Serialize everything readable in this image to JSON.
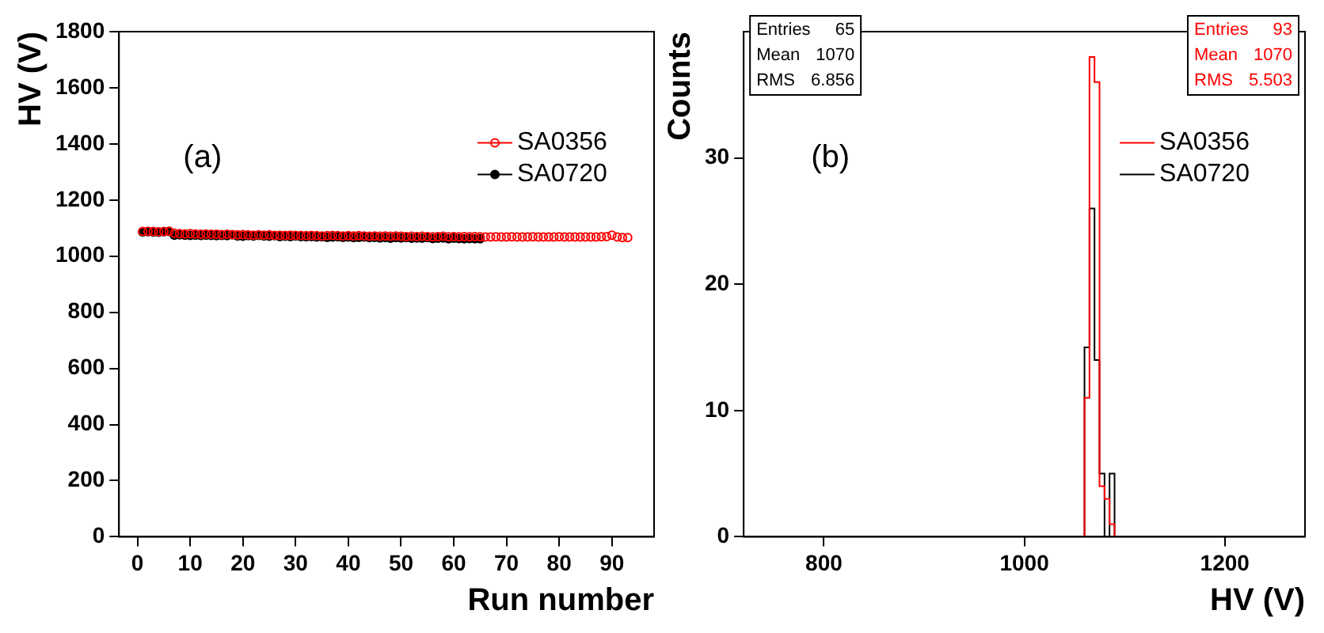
{
  "chart_data": [
    {
      "type": "scatter",
      "xlabel": "Run number",
      "ylabel": "HV (V)",
      "annotations": [
        "(a)"
      ],
      "xlim": [
        -3.5,
        98
      ],
      "xticks": [
        0,
        10,
        20,
        30,
        40,
        50,
        60,
        70,
        80,
        90
      ],
      "ylim": [
        0,
        1800
      ],
      "yticks": [
        0,
        200,
        400,
        600,
        800,
        1000,
        1200,
        1400,
        1600,
        1800
      ],
      "grid": false,
      "legend": "top right",
      "marker": "circle",
      "series": [
        {
          "name": "SA0356",
          "color": "#ff0000",
          "x": [
            1,
            2,
            3,
            4,
            5,
            6,
            7,
            8,
            9,
            10,
            11,
            12,
            13,
            14,
            15,
            16,
            17,
            18,
            19,
            20,
            21,
            22,
            23,
            24,
            25,
            26,
            27,
            28,
            29,
            30,
            31,
            32,
            33,
            34,
            35,
            36,
            37,
            38,
            39,
            40,
            41,
            42,
            43,
            44,
            45,
            46,
            47,
            48,
            49,
            50,
            51,
            52,
            53,
            54,
            55,
            56,
            57,
            58,
            59,
            60,
            61,
            62,
            63,
            64,
            65,
            66,
            67,
            68,
            69,
            70,
            71,
            72,
            73,
            74,
            75,
            76,
            77,
            78,
            79,
            80,
            81,
            82,
            83,
            84,
            85,
            86,
            87,
            88,
            89,
            90,
            91,
            92,
            93
          ],
          "values": [
            1088,
            1089,
            1088,
            1087,
            1088,
            1089,
            1082,
            1080,
            1079,
            1080,
            1079,
            1078,
            1079,
            1078,
            1078,
            1077,
            1078,
            1077,
            1076,
            1077,
            1076,
            1075,
            1076,
            1075,
            1076,
            1074,
            1075,
            1074,
            1075,
            1074,
            1074,
            1073,
            1074,
            1073,
            1072,
            1073,
            1074,
            1073,
            1072,
            1073,
            1072,
            1073,
            1072,
            1071,
            1072,
            1071,
            1072,
            1071,
            1072,
            1071,
            1070,
            1071,
            1070,
            1071,
            1070,
            1069,
            1070,
            1071,
            1069,
            1070,
            1069,
            1070,
            1069,
            1070,
            1069,
            1068,
            1068,
            1069,
            1068,
            1068,
            1069,
            1068,
            1068,
            1068,
            1069,
            1068,
            1068,
            1068,
            1068,
            1069,
            1068,
            1068,
            1068,
            1068,
            1068,
            1068,
            1068,
            1069,
            1070,
            1075,
            1068,
            1066,
            1066
          ]
        },
        {
          "name": "SA0720",
          "color": "#000000",
          "x": [
            1,
            2,
            3,
            4,
            5,
            6,
            7,
            8,
            9,
            10,
            11,
            12,
            13,
            14,
            15,
            16,
            17,
            18,
            19,
            20,
            21,
            22,
            23,
            24,
            25,
            26,
            27,
            28,
            29,
            30,
            31,
            32,
            33,
            34,
            35,
            36,
            37,
            38,
            39,
            40,
            41,
            42,
            43,
            44,
            45,
            46,
            47,
            48,
            49,
            50,
            51,
            52,
            53,
            54,
            55,
            56,
            57,
            58,
            59,
            60,
            61,
            62,
            63,
            64,
            65
          ],
          "values": [
            1086,
            1087,
            1086,
            1085,
            1087,
            1088,
            1075,
            1076,
            1075,
            1074,
            1075,
            1074,
            1075,
            1074,
            1073,
            1074,
            1073,
            1076,
            1072,
            1071,
            1073,
            1072,
            1074,
            1072,
            1071,
            1073,
            1070,
            1071,
            1070,
            1072,
            1070,
            1069,
            1070,
            1068,
            1069,
            1067,
            1068,
            1069,
            1067,
            1068,
            1066,
            1067,
            1068,
            1066,
            1067,
            1065,
            1066,
            1064,
            1066,
            1065,
            1066,
            1064,
            1065,
            1064,
            1066,
            1063,
            1064,
            1065,
            1062,
            1064,
            1063,
            1062,
            1063,
            1062,
            1062
          ]
        }
      ]
    },
    {
      "type": "histogram",
      "xlabel": "HV (V)",
      "ylabel": "Counts",
      "annotations": [
        "(b)",
        "Entries 65",
        "Mean 1070",
        "RMS 6.856",
        "Entries 93",
        "Mean 1070",
        "RMS 5.503"
      ],
      "xlim": [
        720,
        1280
      ],
      "xticks": [
        800,
        1000,
        1200
      ],
      "ylim": [
        0,
        40
      ],
      "yticks": [
        0,
        10,
        20,
        30
      ],
      "grid": false,
      "legend": "top right",
      "bins": [
        1060,
        1065,
        1070,
        1075,
        1080,
        1085,
        1090
      ],
      "series": [
        {
          "name": "SA0356",
          "color": "#ff0000",
          "values": [
            11,
            38,
            36,
            4,
            3,
            1
          ]
        },
        {
          "name": "SA0720",
          "color": "#000000",
          "values": [
            15,
            26,
            14,
            5,
            0,
            5
          ]
        }
      ]
    }
  ]
}
